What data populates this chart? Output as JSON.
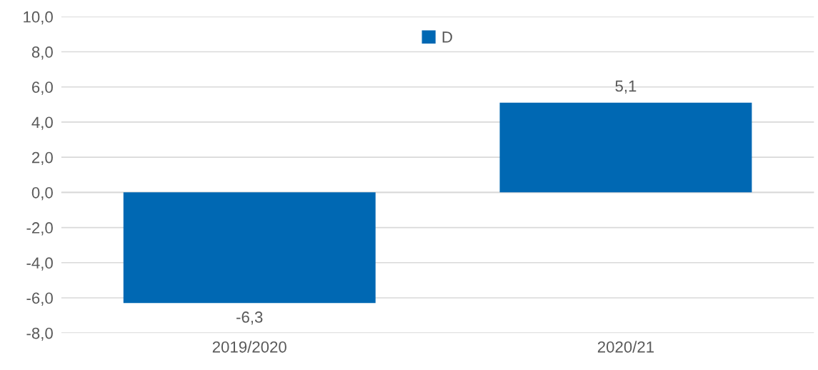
{
  "chart_data": {
    "type": "bar",
    "categories": [
      "2019/2020",
      "2020/21"
    ],
    "series": [
      {
        "name": "D",
        "color": "#0068b3",
        "values": [
          -6.3,
          5.1
        ],
        "value_labels": [
          "-6,3",
          "5,1"
        ]
      }
    ],
    "ylim": [
      -8,
      10
    ],
    "yticks": [
      {
        "value": -8,
        "label": "-8,0"
      },
      {
        "value": -6,
        "label": "-6,0"
      },
      {
        "value": -4,
        "label": "-4,0"
      },
      {
        "value": -2,
        "label": "-2,0"
      },
      {
        "value": 0,
        "label": "0,0"
      },
      {
        "value": 2,
        "label": "2,0"
      },
      {
        "value": 4,
        "label": "4,0"
      },
      {
        "value": 6,
        "label": "6,0"
      },
      {
        "value": 8,
        "label": "8,0"
      },
      {
        "value": 10,
        "label": "10,0"
      }
    ],
    "grid": "y",
    "legend": "top"
  }
}
